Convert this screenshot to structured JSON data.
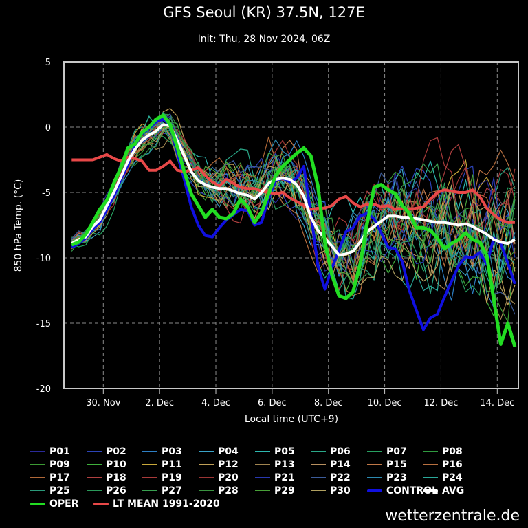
{
  "title": "GFS Seoul (KR) 37.5N, 127E",
  "subtitle": "Init: Thu, 28 Nov 2024, 06Z",
  "credit": "wetterzentrale.de",
  "chart_data": {
    "type": "line",
    "title": "GFS Seoul (KR) 37.5N, 127E",
    "subtitle": "Init: Thu, 28 Nov 2024, 06Z",
    "xlabel": "Local time (UTC+9)",
    "ylabel": "850 hPa Temp. (°C)",
    "ylim": [
      -20,
      5
    ],
    "yticks": [
      5,
      0,
      -5,
      -10,
      -15,
      -20
    ],
    "x_unit": "days since 28 Nov 2024 00:00 local",
    "xlim": [
      0.6,
      16.75
    ],
    "x_start": 0.875,
    "x_step": 0.25,
    "xticks": [
      {
        "value": 2,
        "label": "30. Nov"
      },
      {
        "value": 4,
        "label": "2. Dec"
      },
      {
        "value": 6,
        "label": "4. Dec"
      },
      {
        "value": 8,
        "label": "6. Dec"
      },
      {
        "value": 10,
        "label": "8. Dec"
      },
      {
        "value": 12,
        "label": "10. Dec"
      },
      {
        "value": 14,
        "label": "12. Dec"
      },
      {
        "value": 16,
        "label": "14. Dec"
      }
    ],
    "grid": true,
    "legend_position": "bottom",
    "main_series": [
      {
        "name": "LT MEAN 1991-2020",
        "color": "#e84848",
        "width": 4,
        "values": [
          -2.5,
          -2.5,
          -2.5,
          -2.5,
          -2.3,
          -2.1,
          -2.4,
          -2.6,
          -2.3,
          -2.4,
          -2.6,
          -3.3,
          -3.3,
          -3.0,
          -2.6,
          -3.3,
          -3.4,
          -3.3,
          -3.1,
          -3.7,
          -4.2,
          -4.5,
          -4.0,
          -4.3,
          -4.6,
          -4.7,
          -4.7,
          -4.9,
          -5.0,
          -5.1,
          -5.0,
          -5.4,
          -5.7,
          -6.0,
          -6.3,
          -6.2,
          -6.2,
          -6.0,
          -5.5,
          -5.3,
          -5.8,
          -6.1,
          -5.9,
          -5.9,
          -6.1,
          -6.0,
          -6.3,
          -6.2,
          -6.3,
          -6.2,
          -6.1,
          -5.5,
          -5.0,
          -4.8,
          -4.9,
          -5.0,
          -5.0,
          -4.8,
          -5.3,
          -6.2,
          -6.7,
          -7.1,
          -7.3,
          -7.3
        ],
        "note": "values at 6h steps"
      },
      {
        "name": "AVG",
        "color": "#ffffff",
        "width": 4,
        "values": [
          -8.9,
          -8.6,
          -8.4,
          -7.6,
          -7.1,
          -6.0,
          -5.0,
          -3.8,
          -2.6,
          -1.7,
          -1.0,
          -0.6,
          -0.3,
          0.2,
          0.1,
          -1.0,
          -2.2,
          -3.4,
          -4.1,
          -4.4,
          -4.6,
          -4.7,
          -4.7,
          -4.9,
          -5.1,
          -5.2,
          -5.5,
          -5.0,
          -4.3,
          -4.0,
          -3.9,
          -4.0,
          -4.4,
          -5.3,
          -6.9,
          -7.9,
          -8.5,
          -9.1,
          -9.8,
          -9.7,
          -9.5,
          -8.8,
          -8.0,
          -7.6,
          -7.2,
          -6.8,
          -6.8,
          -6.9,
          -6.9,
          -7.0,
          -7.1,
          -7.2,
          -7.3,
          -7.3,
          -7.4,
          -7.5,
          -7.4,
          -7.6,
          -7.9,
          -8.2,
          -8.6,
          -8.8,
          -8.9,
          -8.6
        ]
      },
      {
        "name": "CONTROL",
        "color": "#1010e0",
        "width": 4,
        "values": [
          -9.2,
          -8.9,
          -8.5,
          -7.8,
          -7.3,
          -6.3,
          -5.3,
          -4.0,
          -2.9,
          -1.4,
          -0.5,
          -0.1,
          0.4,
          0.6,
          0.2,
          -1.9,
          -4.0,
          -6.1,
          -7.5,
          -8.3,
          -8.4,
          -7.7,
          -7.1,
          -6.7,
          -6.3,
          -6.4,
          -7.5,
          -7.3,
          -5.4,
          -4.1,
          -3.9,
          -4.2,
          -3.9,
          -3.0,
          -6.6,
          -10.6,
          -12.4,
          -10.8,
          -9.4,
          -8.0,
          -7.7,
          -6.8,
          -6.6,
          -7.0,
          -8.1,
          -9.2,
          -9.3,
          -10.3,
          -12.5,
          -14.0,
          -15.5,
          -14.6,
          -14.3,
          -13.0,
          -11.8,
          -10.6,
          -9.9,
          -10.0,
          -9.6,
          -10.5,
          -8.5,
          -8.9,
          -10.4,
          -12.0
        ]
      },
      {
        "name": "OPER",
        "color": "#22dd22",
        "width": 5,
        "values": [
          -9.0,
          -8.8,
          -8.2,
          -7.3,
          -6.3,
          -5.6,
          -4.3,
          -3.1,
          -1.6,
          -1.3,
          -0.4,
          0.0,
          0.6,
          0.9,
          0.2,
          -1.5,
          -3.4,
          -5.1,
          -6.0,
          -6.9,
          -6.3,
          -6.9,
          -7.0,
          -6.6,
          -5.5,
          -6.1,
          -7.3,
          -6.5,
          -5.1,
          -3.7,
          -3.0,
          -2.5,
          -2.0,
          -1.6,
          -2.2,
          -4.5,
          -8.8,
          -11.3,
          -12.9,
          -13.1,
          -12.6,
          -10.5,
          -7.4,
          -4.6,
          -4.4,
          -4.8,
          -5.1,
          -6.0,
          -6.6,
          -7.7,
          -7.7,
          -7.9,
          -8.5,
          -9.3,
          -8.9,
          -8.6,
          -8.1,
          -8.6,
          -8.8,
          -9.8,
          -13.2,
          -16.6,
          -15.0,
          -16.8
        ]
      }
    ],
    "member_colors": [
      "#2a2a9a",
      "#2c44b8",
      "#2e7fc4",
      "#3aa3c8",
      "#2db8b0",
      "#2aa888",
      "#27a060",
      "#2f9a3f",
      "#3c9a34",
      "#3fb03c",
      "#c8a83a",
      "#c0a058",
      "#a08450",
      "#b89060",
      "#c07848",
      "#b87040",
      "#b06838",
      "#b04040",
      "#a83a3a",
      "#9a3434",
      "#2838b0",
      "#3c5c9a",
      "#2c8ab0",
      "#2aa89a",
      "#2a9a7a",
      "#2a9a5a",
      "#38a050",
      "#3a9440",
      "#48a038",
      "#b0a060"
    ],
    "members": [
      {
        "name": "P01"
      },
      {
        "name": "P02"
      },
      {
        "name": "P03"
      },
      {
        "name": "P04"
      },
      {
        "name": "P05"
      },
      {
        "name": "P06"
      },
      {
        "name": "P07"
      },
      {
        "name": "P08"
      },
      {
        "name": "P09"
      },
      {
        "name": "P10"
      },
      {
        "name": "P11"
      },
      {
        "name": "P12"
      },
      {
        "name": "P13"
      },
      {
        "name": "P14"
      },
      {
        "name": "P15"
      },
      {
        "name": "P16"
      },
      {
        "name": "P17"
      },
      {
        "name": "P18"
      },
      {
        "name": "P19"
      },
      {
        "name": "P20"
      },
      {
        "name": "P21"
      },
      {
        "name": "P22"
      },
      {
        "name": "P23"
      },
      {
        "name": "P24"
      },
      {
        "name": "P25"
      },
      {
        "name": "P26"
      },
      {
        "name": "P27"
      },
      {
        "name": "P28"
      },
      {
        "name": "P29"
      },
      {
        "name": "P30"
      }
    ],
    "member_spread_note": "ensemble members approximated as AVG plus growing deviation",
    "member_spread_max": 6.5
  },
  "legend": {
    "items": [
      {
        "label": "P01",
        "color": "#2a2a9a",
        "thick": false
      },
      {
        "label": "P02",
        "color": "#2c44b8",
        "thick": false
      },
      {
        "label": "P03",
        "color": "#2e7fc4",
        "thick": false
      },
      {
        "label": "P04",
        "color": "#3aa3c8",
        "thick": false
      },
      {
        "label": "P05",
        "color": "#2db8b0",
        "thick": false
      },
      {
        "label": "P06",
        "color": "#2aa888",
        "thick": false
      },
      {
        "label": "P07",
        "color": "#27a060",
        "thick": false
      },
      {
        "label": "P08",
        "color": "#2f9a3f",
        "thick": false
      },
      {
        "label": "P09",
        "color": "#3c9a34",
        "thick": false
      },
      {
        "label": "P10",
        "color": "#3fb03c",
        "thick": false
      },
      {
        "label": "P11",
        "color": "#c8a83a",
        "thick": false
      },
      {
        "label": "P12",
        "color": "#c0a058",
        "thick": false
      },
      {
        "label": "P13",
        "color": "#a08450",
        "thick": false
      },
      {
        "label": "P14",
        "color": "#b89060",
        "thick": false
      },
      {
        "label": "P15",
        "color": "#c07848",
        "thick": false
      },
      {
        "label": "P16",
        "color": "#b87040",
        "thick": false
      },
      {
        "label": "P17",
        "color": "#b06838",
        "thick": false
      },
      {
        "label": "P18",
        "color": "#b04040",
        "thick": false
      },
      {
        "label": "P19",
        "color": "#a83a3a",
        "thick": false
      },
      {
        "label": "P20",
        "color": "#9a3434",
        "thick": false
      },
      {
        "label": "P21",
        "color": "#2838b0",
        "thick": false
      },
      {
        "label": "P22",
        "color": "#3c5c9a",
        "thick": false
      },
      {
        "label": "P23",
        "color": "#2c8ab0",
        "thick": false
      },
      {
        "label": "P24",
        "color": "#2aa89a",
        "thick": false
      },
      {
        "label": "P25",
        "color": "#2a9a7a",
        "thick": false
      },
      {
        "label": "P26",
        "color": "#2a9a5a",
        "thick": false
      },
      {
        "label": "P27",
        "color": "#38a050",
        "thick": false
      },
      {
        "label": "P28",
        "color": "#3a9440",
        "thick": false
      },
      {
        "label": "P29",
        "color": "#48a038",
        "thick": false
      },
      {
        "label": "P30",
        "color": "#b0a060",
        "thick": false
      },
      {
        "label": "CONTROL",
        "color": "#1010e0",
        "thick": true
      },
      {
        "label": "AVG",
        "color": "#ffffff",
        "thick": true
      },
      {
        "label": "OPER",
        "color": "#22dd22",
        "thick": true
      },
      {
        "label": "LT MEAN 1991-2020",
        "color": "#e84848",
        "thick": true
      }
    ]
  }
}
